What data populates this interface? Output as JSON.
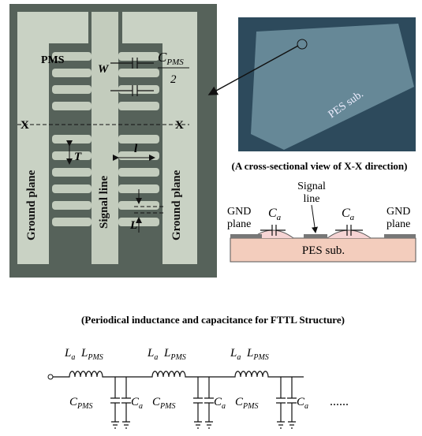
{
  "micrograph": {
    "pms": "PMS",
    "w": "W",
    "cpms": {
      "main": "C",
      "sub": "PMS"
    },
    "half": "2",
    "x_left": "X",
    "x_right": "X",
    "t": "T",
    "l_small": "l",
    "l_big": "L",
    "ground_left": "Ground plane",
    "ground_right": "Ground plane",
    "signal": "Signal line"
  },
  "photo": {
    "label": "PES sub."
  },
  "cross_section": {
    "caption": "(A cross-sectional view of X-X direction)",
    "signal_line": [
      "Signal",
      "line"
    ],
    "gnd_left": [
      "GND",
      "plane"
    ],
    "gnd_right": [
      "GND",
      "plane"
    ],
    "cap_left": {
      "main": "C",
      "sub": "a"
    },
    "cap_right": {
      "main": "C",
      "sub": "a"
    },
    "substrate": "PES sub."
  },
  "circuit": {
    "title": "(Periodical inductance and capacitance for FTTL Structure)",
    "cells": [
      {
        "inductors": [
          {
            "main": "L",
            "sub": "a"
          },
          {
            "main": "L",
            "sub": "PMS"
          }
        ],
        "capacitors": [
          {
            "main": "C",
            "sub": "PMS"
          },
          {
            "main": "C",
            "sub": "a"
          }
        ]
      },
      {
        "inductors": [
          {
            "main": "L",
            "sub": "a"
          },
          {
            "main": "L",
            "sub": "PMS"
          }
        ],
        "capacitors": [
          {
            "main": "C",
            "sub": "PMS"
          },
          {
            "main": "C",
            "sub": "a"
          }
        ]
      },
      {
        "inductors": [
          {
            "main": "L",
            "sub": "a"
          },
          {
            "main": "L",
            "sub": "PMS"
          }
        ],
        "capacitors": [
          {
            "main": "C",
            "sub": "PMS"
          },
          {
            "main": "C",
            "sub": "a"
          }
        ]
      }
    ],
    "ellipsis": "......"
  }
}
